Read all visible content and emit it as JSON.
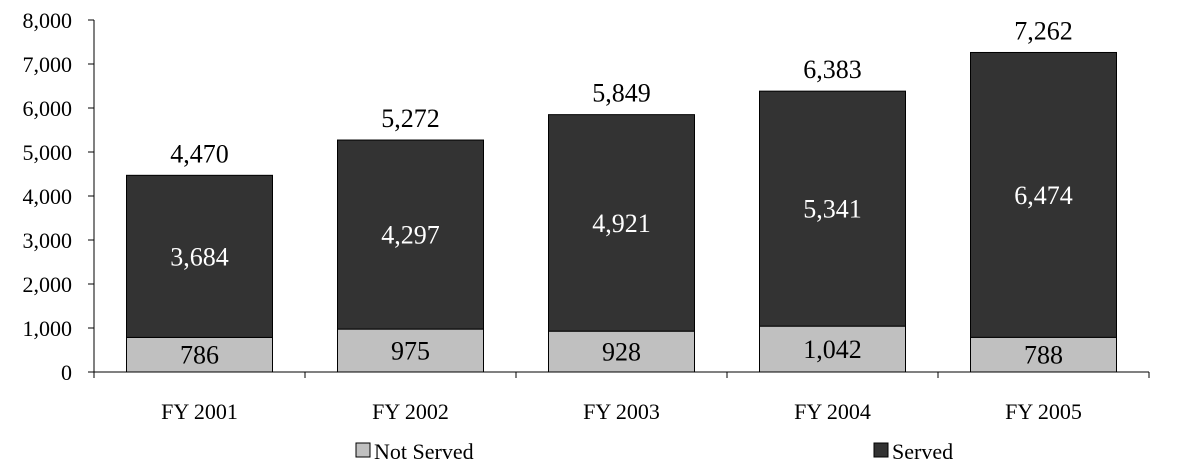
{
  "chart_data": {
    "type": "bar",
    "stacked": true,
    "categories": [
      "FY 2001",
      "FY 2002",
      "FY 2003",
      "FY 2004",
      "FY 2005"
    ],
    "series": [
      {
        "name": "Not Served",
        "values": [
          786,
          975,
          928,
          1042,
          788
        ],
        "labels": [
          "786",
          "975",
          "928",
          "1,042",
          "788"
        ],
        "color": "#c0c0c0"
      },
      {
        "name": "Served",
        "values": [
          3684,
          4297,
          4921,
          5341,
          6474
        ],
        "labels": [
          "3,684",
          "4,297",
          "4,921",
          "5,341",
          "6,474"
        ],
        "color": "#333333"
      }
    ],
    "totals": [
      4470,
      5272,
      5849,
      6383,
      7262
    ],
    "total_labels": [
      "4,470",
      "5,272",
      "5,849",
      "6,383",
      "7,262"
    ],
    "ylim": [
      0,
      8000
    ],
    "yticks": [
      0,
      1000,
      2000,
      3000,
      4000,
      5000,
      6000,
      7000,
      8000
    ],
    "ytick_labels": [
      "0",
      "1,000",
      "2,000",
      "3,000",
      "4,000",
      "5,000",
      "6,000",
      "7,000",
      "8,000"
    ],
    "grid": false,
    "legend_position": "bottom",
    "title": "",
    "xlabel": "",
    "ylabel": ""
  }
}
